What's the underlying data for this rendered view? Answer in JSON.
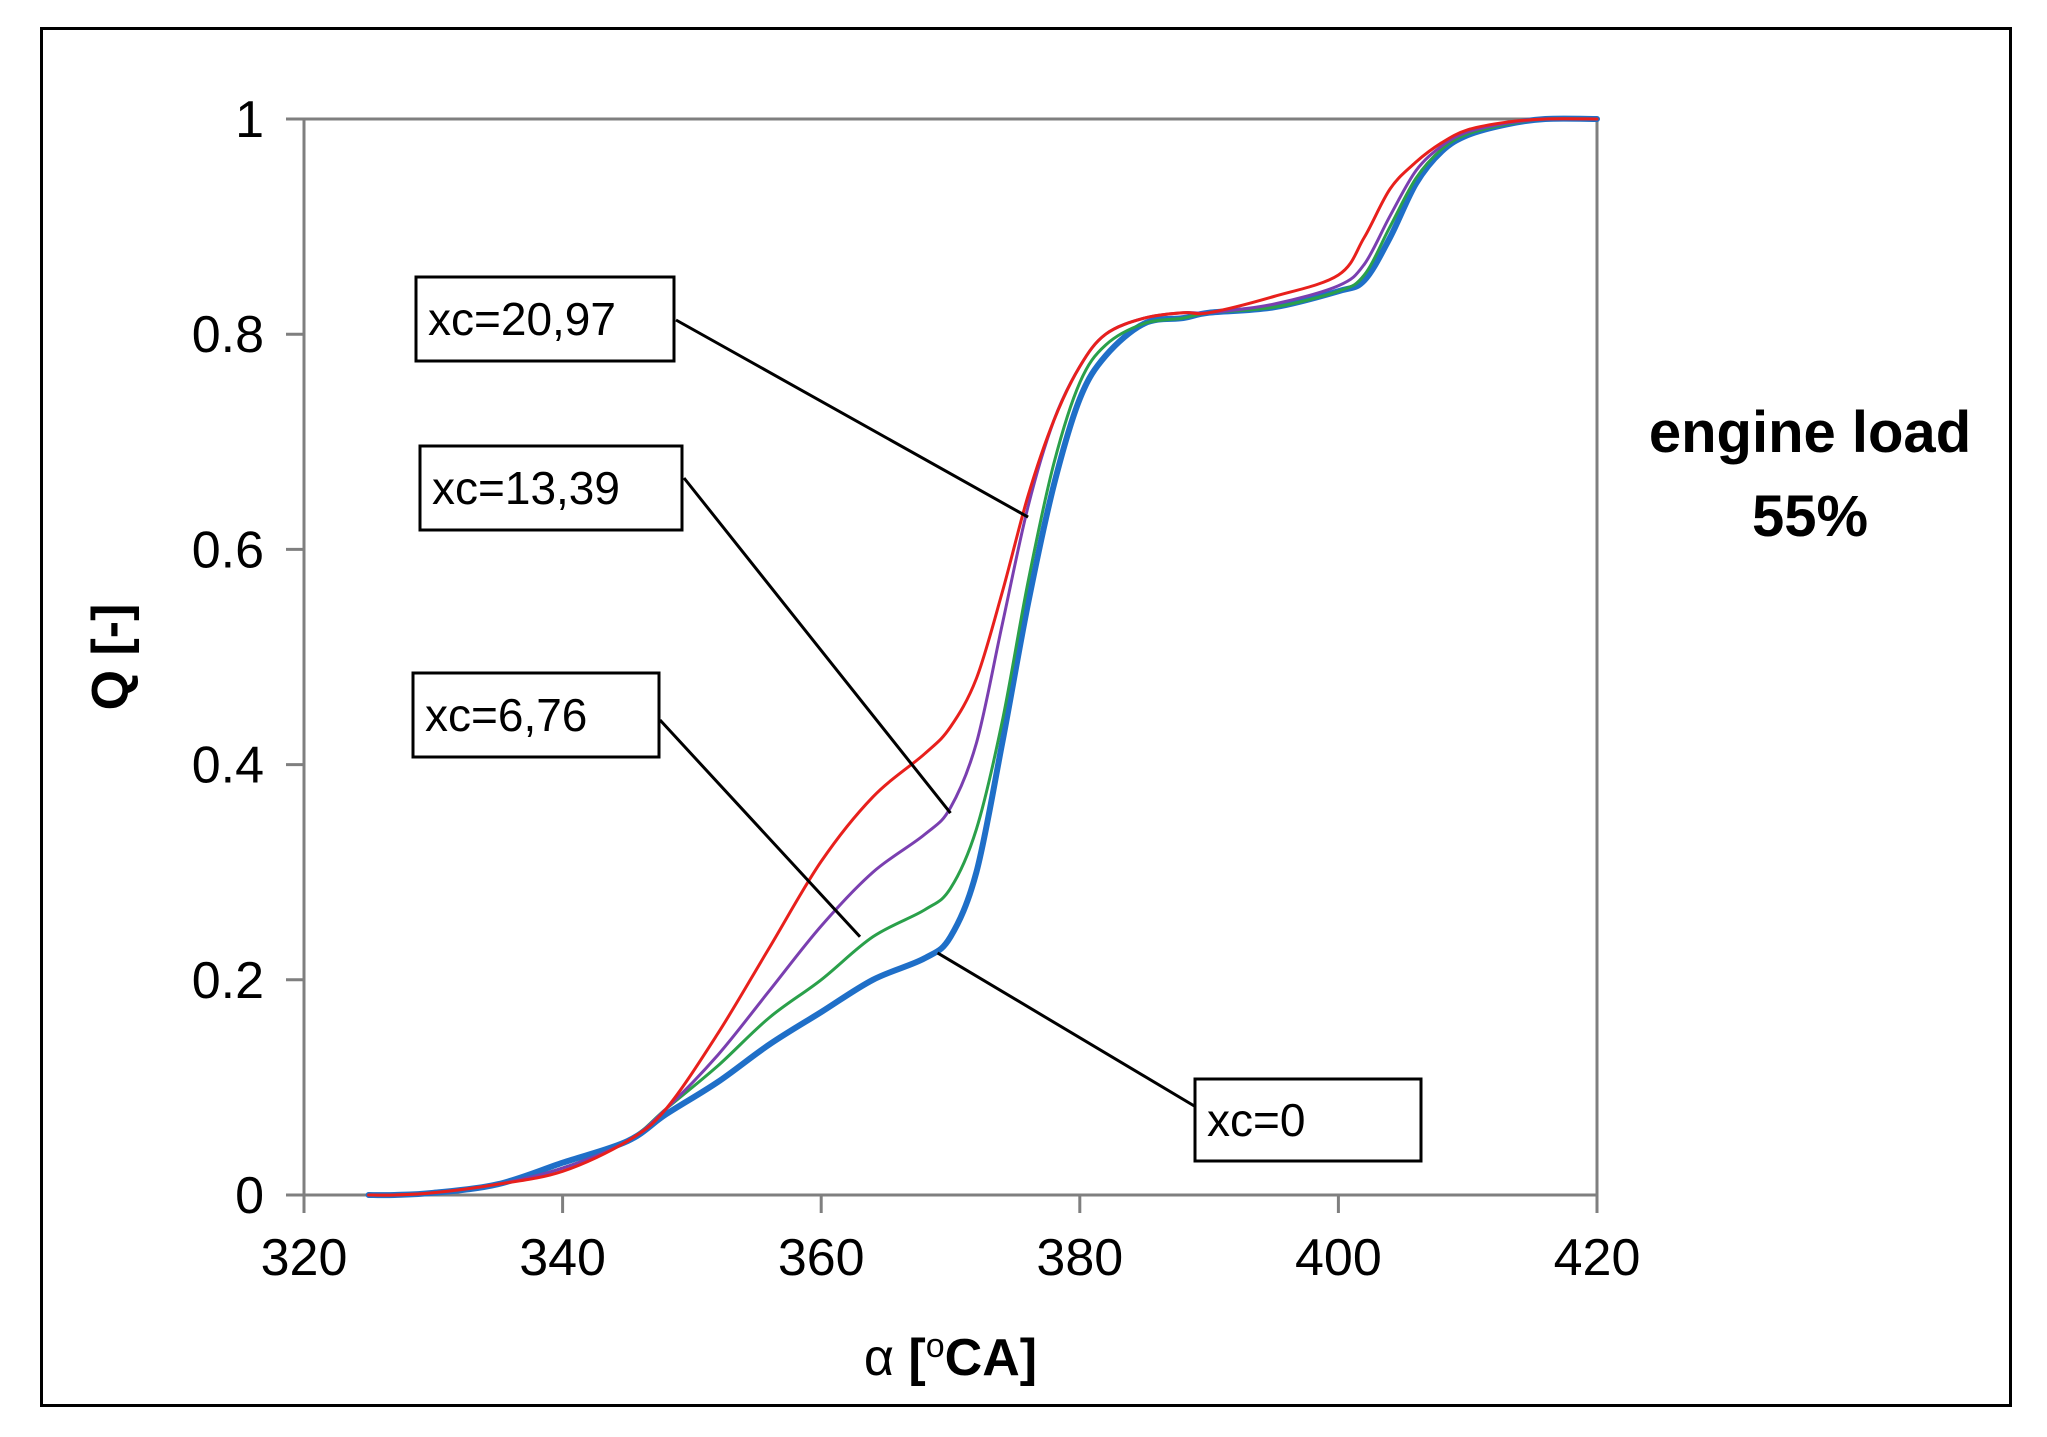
{
  "chart_data": {
    "type": "line",
    "title": "",
    "xlabel": "α [°CA]",
    "xlabel_parts": {
      "symbol": "α",
      "unit_open": "[",
      "degree": "o",
      "unit_rest": "CA]"
    },
    "ylabel": "Q [-]",
    "xlim": [
      320,
      420
    ],
    "ylim": [
      0,
      1
    ],
    "xticks": [
      320,
      340,
      360,
      380,
      400,
      420
    ],
    "xtick_labels": [
      "320",
      "340",
      "360",
      "380",
      "400",
      "420"
    ],
    "yticks": [
      0,
      0.2,
      0.4,
      0.6,
      0.8,
      1
    ],
    "ytick_labels": [
      "0",
      "0.2",
      "0.4",
      "0.6",
      "0.8",
      "1"
    ],
    "grid": false,
    "side_note": [
      "engine load",
      "55%"
    ],
    "series": [
      {
        "name": "xc=0",
        "color": "#1f6fc8",
        "x": [
          325,
          327,
          330,
          335,
          340,
          345,
          348,
          352,
          356,
          360,
          364,
          368,
          370,
          372,
          374,
          376,
          378,
          380,
          382,
          385,
          388,
          390,
          395,
          400,
          402,
          404,
          406,
          408,
          410,
          413,
          416,
          420
        ],
        "y": [
          0,
          0,
          0.002,
          0.01,
          0.03,
          0.05,
          0.075,
          0.105,
          0.14,
          0.17,
          0.2,
          0.22,
          0.24,
          0.3,
          0.42,
          0.55,
          0.66,
          0.74,
          0.78,
          0.81,
          0.815,
          0.82,
          0.825,
          0.84,
          0.85,
          0.89,
          0.94,
          0.97,
          0.985,
          0.995,
          1,
          1
        ]
      },
      {
        "name": "xc=6,76",
        "color": "#2aa04a",
        "x": [
          325,
          327,
          330,
          335,
          340,
          345,
          348,
          352,
          356,
          360,
          364,
          368,
          370,
          372,
          374,
          376,
          378,
          380,
          382,
          385,
          388,
          390,
          395,
          400,
          402,
          404,
          406,
          408,
          410,
          413,
          416,
          420
        ],
        "y": [
          0,
          0,
          0.002,
          0.01,
          0.025,
          0.05,
          0.08,
          0.12,
          0.165,
          0.2,
          0.24,
          0.265,
          0.285,
          0.34,
          0.44,
          0.57,
          0.68,
          0.755,
          0.79,
          0.81,
          0.815,
          0.82,
          0.825,
          0.84,
          0.855,
          0.9,
          0.945,
          0.972,
          0.986,
          0.995,
          1,
          1
        ]
      },
      {
        "name": "xc=13,39",
        "color": "#7a3fb0",
        "x": [
          325,
          327,
          330,
          335,
          340,
          345,
          348,
          352,
          356,
          360,
          364,
          368,
          370,
          372,
          374,
          376,
          378,
          380,
          382,
          385,
          388,
          390,
          395,
          400,
          402,
          404,
          406,
          408,
          410,
          413,
          416,
          420
        ],
        "y": [
          0,
          0,
          0.002,
          0.01,
          0.025,
          0.05,
          0.08,
          0.13,
          0.19,
          0.25,
          0.3,
          0.335,
          0.36,
          0.42,
          0.53,
          0.64,
          0.72,
          0.77,
          0.8,
          0.815,
          0.82,
          0.82,
          0.828,
          0.845,
          0.865,
          0.91,
          0.952,
          0.975,
          0.988,
          0.996,
          1,
          1
        ]
      },
      {
        "name": "xc=20,97",
        "color": "#e8201c",
        "x": [
          325,
          327,
          330,
          335,
          340,
          345,
          348,
          352,
          356,
          360,
          364,
          368,
          370,
          372,
          374,
          376,
          378,
          380,
          382,
          385,
          388,
          390,
          395,
          400,
          402,
          404,
          406,
          408,
          410,
          413,
          416,
          420
        ],
        "y": [
          0,
          0,
          0.002,
          0.01,
          0.022,
          0.05,
          0.08,
          0.15,
          0.23,
          0.31,
          0.37,
          0.41,
          0.435,
          0.48,
          0.56,
          0.65,
          0.72,
          0.77,
          0.8,
          0.815,
          0.82,
          0.82,
          0.835,
          0.855,
          0.89,
          0.935,
          0.96,
          0.978,
          0.99,
          0.997,
          1,
          1
        ]
      }
    ],
    "annotations": [
      {
        "label": "xc=20,97",
        "points_to_series": "xc=20,97",
        "at_x": 376,
        "at_y": 0.63
      },
      {
        "label": "xc=13,39",
        "points_to_series": "xc=13,39",
        "at_x": 370,
        "at_y": 0.355
      },
      {
        "label": "xc=6,76",
        "points_to_series": "xc=6,76",
        "at_x": 363,
        "at_y": 0.24
      },
      {
        "label": "xc=0",
        "points_to_series": "xc=0",
        "at_x": 369,
        "at_y": 0.225
      }
    ]
  }
}
